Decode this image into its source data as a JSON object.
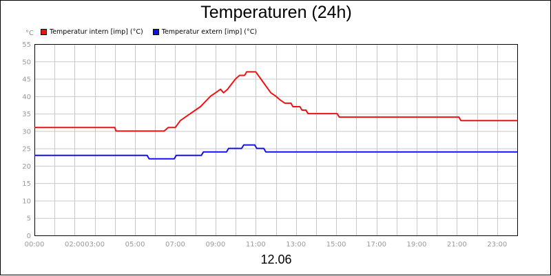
{
  "chart_data": {
    "type": "line",
    "title": "Temperaturen (24h)",
    "y_unit": "°C",
    "date_label": "12.06",
    "ylim": [
      0,
      55
    ],
    "y_ticks": [
      0,
      5,
      10,
      15,
      20,
      25,
      30,
      35,
      40,
      45,
      50,
      55
    ],
    "xlim": [
      0,
      24
    ],
    "x_ticks": [
      {
        "h": 0,
        "label": "00:00"
      },
      {
        "h": 2,
        "label": "02:00"
      },
      {
        "h": 3,
        "label": "03:00"
      },
      {
        "h": 5,
        "label": "05:00"
      },
      {
        "h": 7,
        "label": "07:00"
      },
      {
        "h": 9,
        "label": "09:00"
      },
      {
        "h": 11,
        "label": "11:00"
      },
      {
        "h": 13,
        "label": "13:00"
      },
      {
        "h": 15,
        "label": "15:00"
      },
      {
        "h": 17,
        "label": "17:00"
      },
      {
        "h": 19,
        "label": "19:00"
      },
      {
        "h": 21,
        "label": "21:00"
      },
      {
        "h": 23,
        "label": "23:00"
      }
    ],
    "grid": true,
    "legend_position": "top-left",
    "series": [
      {
        "name": "Temperatur intern [imp] (°C)",
        "color": "#ee1111",
        "points": [
          [
            0,
            31
          ],
          [
            4.0,
            31
          ],
          [
            4.05,
            30
          ],
          [
            6.45,
            30
          ],
          [
            6.65,
            31
          ],
          [
            7.0,
            31
          ],
          [
            7.25,
            33
          ],
          [
            7.5,
            34
          ],
          [
            7.75,
            35
          ],
          [
            8.0,
            36
          ],
          [
            8.25,
            37
          ],
          [
            8.5,
            38.5
          ],
          [
            8.75,
            40
          ],
          [
            9.0,
            41
          ],
          [
            9.25,
            42
          ],
          [
            9.4,
            41
          ],
          [
            9.6,
            42
          ],
          [
            9.8,
            43.5
          ],
          [
            10.0,
            45
          ],
          [
            10.2,
            46
          ],
          [
            10.45,
            46
          ],
          [
            10.55,
            47
          ],
          [
            11.0,
            47
          ],
          [
            11.25,
            45
          ],
          [
            11.5,
            43
          ],
          [
            11.75,
            41
          ],
          [
            12.0,
            40
          ],
          [
            12.2,
            39
          ],
          [
            12.45,
            38
          ],
          [
            12.75,
            38
          ],
          [
            12.85,
            37
          ],
          [
            13.2,
            37
          ],
          [
            13.3,
            36
          ],
          [
            13.5,
            36
          ],
          [
            13.6,
            35
          ],
          [
            15.05,
            35
          ],
          [
            15.15,
            34
          ],
          [
            21.1,
            34
          ],
          [
            21.2,
            33
          ],
          [
            24,
            33
          ]
        ]
      },
      {
        "name": "Temperatur extern [imp] (°C)",
        "color": "#1111ee",
        "points": [
          [
            0,
            23
          ],
          [
            5.6,
            23
          ],
          [
            5.7,
            22
          ],
          [
            6.95,
            22
          ],
          [
            7.05,
            23
          ],
          [
            8.3,
            23
          ],
          [
            8.4,
            24
          ],
          [
            9.55,
            24
          ],
          [
            9.65,
            25
          ],
          [
            10.3,
            25
          ],
          [
            10.4,
            26
          ],
          [
            10.95,
            26
          ],
          [
            11.05,
            25
          ],
          [
            11.4,
            25
          ],
          [
            11.5,
            24
          ],
          [
            24,
            24
          ]
        ]
      }
    ]
  }
}
